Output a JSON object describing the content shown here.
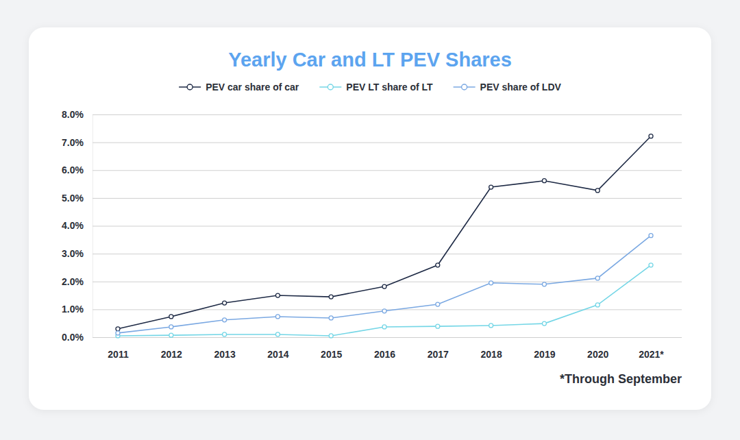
{
  "chart_data": {
    "type": "line",
    "title": "Yearly Car and LT PEV Shares",
    "categories": [
      "2011",
      "2012",
      "2013",
      "2014",
      "2015",
      "2016",
      "2017",
      "2018",
      "2019",
      "2020",
      "2021*"
    ],
    "series": [
      {
        "name": "PEV car share of car",
        "color": "#1e2a45",
        "values": [
          0.3,
          0.74,
          1.23,
          1.5,
          1.45,
          1.82,
          2.59,
          5.39,
          5.62,
          5.27,
          7.22
        ]
      },
      {
        "name": "PEV LT share of LT",
        "color": "#74d6e6",
        "values": [
          0.05,
          0.07,
          0.1,
          0.1,
          0.05,
          0.37,
          0.39,
          0.42,
          0.49,
          1.16,
          2.59
        ]
      },
      {
        "name": "PEV share of LDV",
        "color": "#7aa8e2",
        "values": [
          0.15,
          0.37,
          0.62,
          0.74,
          0.69,
          0.94,
          1.18,
          1.95,
          1.9,
          2.12,
          3.65
        ]
      }
    ],
    "ylim": [
      0,
      8
    ],
    "yticks": [
      {
        "value": 0,
        "label": "0.0%"
      },
      {
        "value": 1,
        "label": "1.0%"
      },
      {
        "value": 2,
        "label": "2.0%"
      },
      {
        "value": 3,
        "label": "3.0%"
      },
      {
        "value": 4,
        "label": "4.0%"
      },
      {
        "value": 5,
        "label": "5.0%"
      },
      {
        "value": 6,
        "label": "6.0%"
      },
      {
        "value": 7,
        "label": "7.0%"
      },
      {
        "value": 8,
        "label": "8.0%"
      }
    ],
    "grid": true,
    "legend": "top",
    "marker": "circle",
    "annotations": [
      "*Through September"
    ]
  }
}
